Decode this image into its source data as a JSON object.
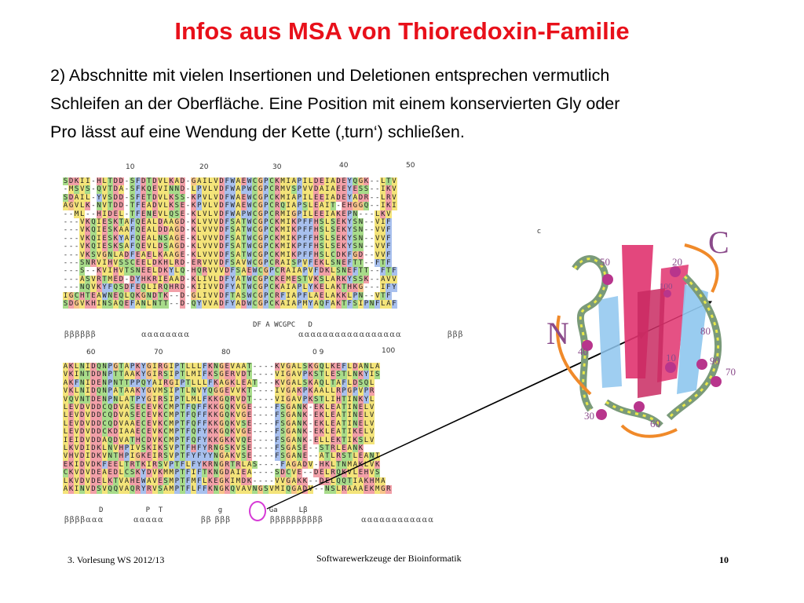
{
  "slide": {
    "title": "Infos aus MSA von Thioredoxin-Familie",
    "body_lines": [
      "2) Abschnitte mit vielen Insertionen und Deletionen entsprechen vermutlich",
      "Schleifen an der Oberfläche. Eine Position mit einem konservierten Gly oder",
      "Pro lässt auf eine Wendung der Kette (‚turn‘) schließen."
    ],
    "footer_left": "3. Vorlesung WS 2012/13",
    "footer_center": "Softwarewerkzeuge der Bioinformatik",
    "page_number": "10"
  },
  "alignment_top": {
    "numbers": [
      "10",
      "20",
      "30",
      "40",
      "50"
    ],
    "rows": [
      "SDKII-HLTDD-SFDTDVLKAD-GAILVDFWAEWCGPCKMIAPILDEIADEYQGK--LTV",
      "-MSVS-QVTDA-SFKQEVINND-LPVLVDFWAPWCGPCRMVSPVVDAIAEEYESS--IKV",
      "SDAIL-YVSDD-SFETDVLKSS-KPVLVDFWAEWCGPCKMIAPILEEIADEYADR--LRV",
      "AGVLK-NVTDD-TFEADVLKSE-KPVLVDFWAEWCGPCRQIAPSLEAIT-EHGGQ--IKI",
      "--ML--HIDEL-TFENEVLQSE-KLVLVDFWAPWCGPCRMIGPILEEIAKEPN---LKV",
      "---VKQIESKTAFQEALDAAGD-KLVVVDFSATWCGPCKMIKPFFHSLSEKYSN--VIF",
      "---VKQIESKAAFQEALDDAGD-KLVVVDFSATWCGPCKMIKPFFHSLSEKYSN--VVF",
      "---VKQIESKYAFQEALNSAGE-KLVVVDFSATWCGPCKMIKPFFHSLSEKYSN--VVF",
      "---VKQIESKSAFQEVLDSAGD-KLVVVDFSATWCGPCKMIKPFFHSLSEKYSN--VVF",
      "---VKSVGNLADFEAELKAAGE-KLVVVDFSATWCGPCKMIKPFFHSLCDKFGD--VVF",
      "---SNRVIHVSSCEELDKHLRD-ERVVVDFSAVWCGPCRAISPVFEKLSNEFTT--FTF",
      "---S--KVIHVTSNEELDKYLQ-HQRVVVDFSAEWCGPCRAIAPVFDKLSNEFTT--FTF",
      "---ASVRTMED-DYHKRIEAAD-KLIVLDFYATWCGPCKEMESTVKSLARKYSSK--AVV",
      "---NQVKYFQSDFEQLIRQHRD-KIIVVDFYATWCGPCKAIAPLYKELAKTHKG---IFY",
      "IGCHTEAWNEQLQKGNDTK--D-GLIVVDFTASWCGPCRFIAPFLAELAKKLPN--VTF",
      "SDGVKHINSAQEFANLNTT--D-QYVVADFYADWCGPCKAIAPMYAQFAKTFSIPNFLAF"
    ],
    "consensus": "DF A WCGPC   D",
    "secondary_structure": [
      {
        "label": "ββββββ"
      },
      {
        "label": "αααααααα"
      },
      {
        "label": "ααααααααααααααααα"
      },
      {
        "label": "βββ"
      }
    ]
  },
  "alignment_bottom": {
    "numbers": [
      "60",
      "70",
      "80",
      "0 9",
      "100"
    ],
    "rows": [
      "AKLNIDQNPGTAPKYGIRGIPTLLLFKNGEVAAT----KVGALSKGQLKEFLDANLA",
      "VKINTDDNPTTAAKYGIRSIPTLMIFKSGERVDT----VIGAVPKSTLESTLNKYIS",
      "AKFNIDENPNTTPPQYAIRGIPTLLLFKAGKLEAT---KVGALSKAQLTAFLDSQL",
      "VKLNIDQNPATAAKYGVMSIPTLNVYQGGEVVKT----IVGAKPKAALLRPGPVPR",
      "VQVNTDENPNLATPYGIRSIPTLMLFKKGQRVDT----VIGAVPKSTLIHTINKYL",
      "LEVDVDDCQDVASECEVKCMPTFQFFKKGQKVGE----FSGANK-EKLEATINELV",
      "LEVDVDDCQDVASECEVKCMPTFQFFKKGQKVGE----FSGANK-EKLEATINELV",
      "LEVDVDDCQDVAAECEVKCMPTFQFFKKGQKVSE----FSGANK-EKLEATINELV",
      "LEVDVDDCKDIAAECEVKCMPTFQFYKKGQKVGE----FSGANK-EKLEATIKELV",
      "IEIDVDDAQDVATHCDVKCMPTFQFYKKGKKVQE----FSGANK-ELLEKTIKSLV",
      "LKVDIDKLNVHPIVSKIKSVPTFHFYRNGSKVSE----FSGASE--STRLEANK",
      "VHVDIDKVNTHPIGKEIRSVPTFYFYYNGAKVSE----FSGANE--ATLRSTLEANI",
      "EKIDVDKFEELTRTKIRSVPTFLFYKRNGRTRLAS----FAGADV-HKLTNMAKLVK",
      "CKVDVDEAEDLCSKYDVKMMPTFIFTKNGDAIEA----SDCVE--DELRQKVLEHVS",
      "LKVDVDELKTVAHEWAVESMPTFMFLKEGKIMDK----VVGAKK--DELQQTIAKHMA",
      "AKINVDSVQQVAQRYRVSAMPTFLFFKNGKQVAVNGSVMIQGADV--NSLRAAAEKMGR"
    ],
    "consensus": "D          P  T             g           Ga     Lβ",
    "gly_label": "g",
    "secondary_structure": [
      {
        "label": "ββββααα"
      },
      {
        "label": "ααααα"
      },
      {
        "label": "ββ βββ"
      },
      {
        "label": "ββββββββββ"
      },
      {
        "label": "αααααααααααα"
      }
    ]
  },
  "structure": {
    "labels": [
      "C",
      "N",
      "50",
      "20",
      "100",
      "80",
      "40",
      "10",
      "90",
      "70",
      "30",
      "60"
    ],
    "side_marker": "c"
  },
  "colors": {
    "title": "#e8101a",
    "hydrophobic": "#f4e47a",
    "charged": "#f2a0a8",
    "polar": "#a8dc8a",
    "aromatic": "#a8c0ee",
    "gly": "#f7c48a",
    "highlight": "#d63ad6"
  }
}
